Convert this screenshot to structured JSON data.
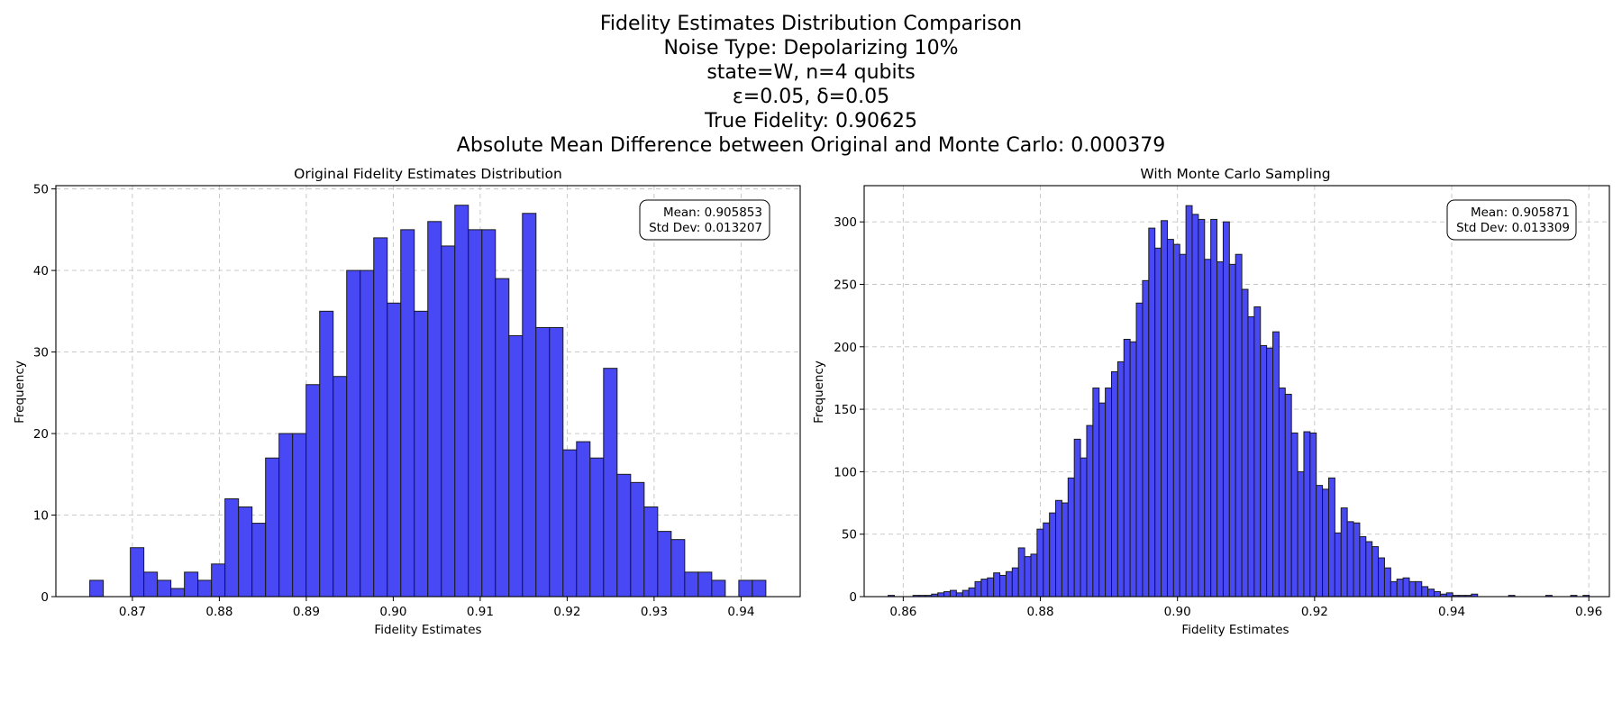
{
  "figure": {
    "title_lines": [
      "Fidelity Estimates Distribution Comparison",
      "Noise Type: Depolarizing 10%",
      "state=W, n=4 qubits",
      "ε=0.05, δ=0.05",
      "True Fidelity: 0.90625",
      "Absolute Mean Difference between Original and Monte Carlo: 0.000379"
    ]
  },
  "chart_data": [
    {
      "type": "bar",
      "title": "Original Fidelity Estimates Distribution",
      "xlabel": "Fidelity Estimates",
      "ylabel": "Frequency",
      "xlim": [
        0.8612,
        0.9468
      ],
      "ylim": [
        0,
        50.4
      ],
      "xticks": [
        0.87,
        0.88,
        0.89,
        0.9,
        0.91,
        0.92,
        0.93,
        0.94
      ],
      "xtick_labels": [
        "0.87",
        "0.88",
        "0.89",
        "0.90",
        "0.91",
        "0.92",
        "0.93",
        "0.94"
      ],
      "yticks": [
        0,
        10,
        20,
        30,
        40,
        50
      ],
      "ytick_labels": [
        "0",
        "10",
        "20",
        "30",
        "40",
        "50"
      ],
      "grid": true,
      "bin_start": 0.8651,
      "bin_width": 0.001555,
      "values": [
        2,
        0,
        0,
        6,
        3,
        2,
        1,
        3,
        2,
        4,
        12,
        11,
        9,
        17,
        20,
        20,
        26,
        35,
        27,
        40,
        40,
        44,
        36,
        45,
        35,
        46,
        43,
        48,
        45,
        45,
        39,
        32,
        47,
        33,
        33,
        18,
        19,
        17,
        28,
        15,
        14,
        11,
        8,
        7,
        3,
        3,
        2,
        0,
        2,
        2
      ],
      "stats_box": {
        "mean": "Mean: 0.905853",
        "std": "Std Dev: 0.013207",
        "position": "top-right"
      },
      "color": "#4848f5"
    },
    {
      "type": "bar",
      "title": "With Monte Carlo Sampling",
      "xlabel": "Fidelity Estimates",
      "ylabel": "Frequency",
      "xlim": [
        0.8543,
        0.963
      ],
      "ylim": [
        0,
        329
      ],
      "xticks": [
        0.86,
        0.88,
        0.9,
        0.92,
        0.94,
        0.96
      ],
      "xtick_labels": [
        "0.86",
        "0.88",
        "0.90",
        "0.92",
        "0.94",
        "0.96"
      ],
      "yticks": [
        0,
        50,
        100,
        150,
        200,
        250,
        300
      ],
      "ytick_labels": [
        "0",
        "50",
        "100",
        "150",
        "200",
        "250",
        "300"
      ],
      "grid": true,
      "bin_start": 0.8578,
      "bin_width": 0.000905,
      "values": [
        1,
        0,
        0,
        0,
        1,
        1,
        1,
        2,
        3,
        4,
        5,
        3,
        5,
        7,
        12,
        14,
        15,
        19,
        17,
        20,
        23,
        39,
        32,
        34,
        54,
        59,
        67,
        77,
        75,
        95,
        126,
        111,
        137,
        167,
        155,
        167,
        180,
        188,
        206,
        204,
        235,
        253,
        295,
        279,
        301,
        286,
        282,
        274,
        313,
        306,
        302,
        270,
        302,
        268,
        300,
        266,
        274,
        246,
        224,
        232,
        201,
        199,
        212,
        167,
        162,
        131,
        100,
        132,
        131,
        89,
        86,
        95,
        51,
        71,
        60,
        59,
        48,
        44,
        40,
        31,
        23,
        12,
        14,
        15,
        12,
        12,
        8,
        6,
        4,
        2,
        3,
        1,
        1,
        1,
        2,
        0,
        0,
        0,
        0,
        0,
        1,
        0,
        0,
        0,
        0,
        0,
        1,
        0,
        0,
        0,
        1,
        0,
        1
      ],
      "stats_box": {
        "mean": "Mean: 0.905871",
        "std": "Std Dev: 0.013309",
        "position": "top-right"
      },
      "color": "#4848f5"
    }
  ]
}
